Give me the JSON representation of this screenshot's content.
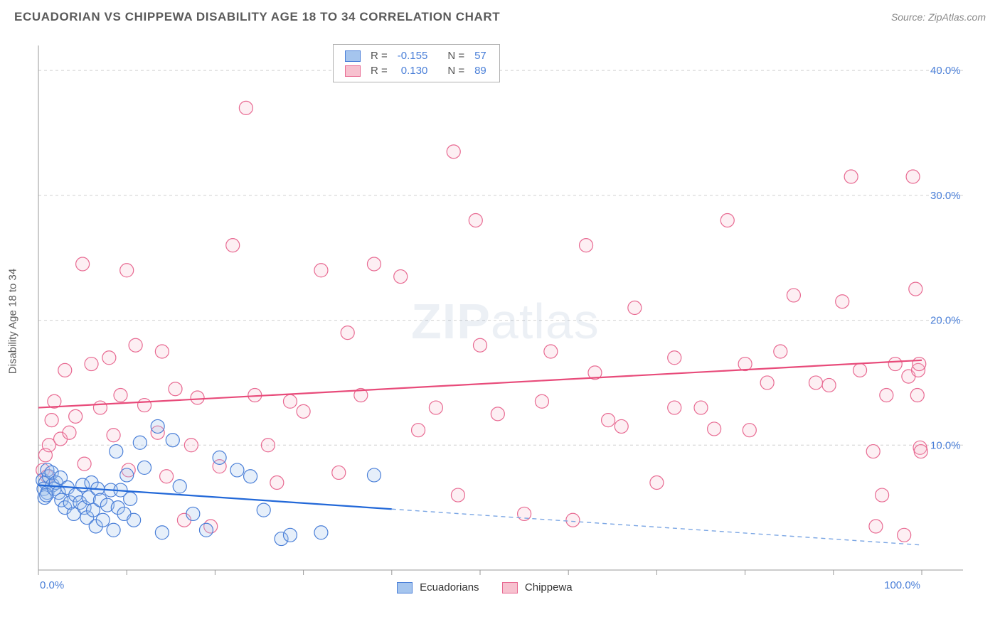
{
  "header": {
    "title": "ECUADORIAN VS CHIPPEWA DISABILITY AGE 18 TO 34 CORRELATION CHART",
    "source_label": "Source: ",
    "source_name": "ZipAtlas.com"
  },
  "ylabel": "Disability Age 18 to 34",
  "watermark": {
    "zip": "ZIP",
    "atlas": "atlas"
  },
  "stats_legend": {
    "r_symbol": "R =",
    "n_symbol": "N =",
    "rows": [
      {
        "r": "-0.155",
        "n": "57",
        "swatch_fill": "#a5c5ee",
        "swatch_stroke": "#4a7fd8"
      },
      {
        "r": "0.130",
        "n": "89",
        "swatch_fill": "#f7c1cf",
        "swatch_stroke": "#e86a92"
      }
    ]
  },
  "bottom_legend": {
    "items": [
      {
        "label": "Ecuadorians",
        "fill": "#a5c5ee",
        "stroke": "#4a7fd8"
      },
      {
        "label": "Chippewa",
        "fill": "#f7c1cf",
        "stroke": "#e86a92"
      }
    ]
  },
  "chart": {
    "type": "scatter",
    "xlim": [
      0,
      100
    ],
    "ylim": [
      0,
      42
    ],
    "x_ticks": [
      0,
      10,
      20,
      30,
      40,
      50,
      60,
      70,
      80,
      90,
      100
    ],
    "x_labeled_ticks": [
      {
        "v": 0,
        "label": "0.0%",
        "anchor": "start"
      },
      {
        "v": 100,
        "label": "100.0%",
        "anchor": "end"
      }
    ],
    "y_gridlines": [
      10,
      20,
      30,
      40
    ],
    "y_labels": [
      {
        "v": 10,
        "label": "10.0%"
      },
      {
        "v": 20,
        "label": "20.0%"
      },
      {
        "v": 30,
        "label": "30.0%"
      },
      {
        "v": 40,
        "label": "40.0%"
      }
    ],
    "marker_radius": 9.5,
    "background_color": "#ffffff",
    "grid_color": "#d0d0d0",
    "series": {
      "ecuadorians": {
        "fill": "#a5c5ee",
        "stroke": "#4a7fd8",
        "trend": {
          "y_at_x0": 6.8,
          "y_at_x100": 2.0,
          "solid_until_x": 40
        },
        "points": [
          [
            0.5,
            7.2
          ],
          [
            0.8,
            7.0
          ],
          [
            0.6,
            6.5
          ],
          [
            1.0,
            6.2
          ],
          [
            1.2,
            7.5
          ],
          [
            1.0,
            8.0
          ],
          [
            1.6,
            6.8
          ],
          [
            1.5,
            7.8
          ],
          [
            0.7,
            5.8
          ],
          [
            0.9,
            6.0
          ],
          [
            1.8,
            6.5
          ],
          [
            2.0,
            7.0
          ],
          [
            2.3,
            6.2
          ],
          [
            2.6,
            5.6
          ],
          [
            2.5,
            7.4
          ],
          [
            3.0,
            5.0
          ],
          [
            3.3,
            6.6
          ],
          [
            3.6,
            5.4
          ],
          [
            4.0,
            4.5
          ],
          [
            4.2,
            6.0
          ],
          [
            4.7,
            5.4
          ],
          [
            5.0,
            6.8
          ],
          [
            5.2,
            5.0
          ],
          [
            5.5,
            4.2
          ],
          [
            5.7,
            5.8
          ],
          [
            6.0,
            7.0
          ],
          [
            6.2,
            4.8
          ],
          [
            6.5,
            3.5
          ],
          [
            6.7,
            6.5
          ],
          [
            7.0,
            5.6
          ],
          [
            7.3,
            4.0
          ],
          [
            7.8,
            5.2
          ],
          [
            8.2,
            6.4
          ],
          [
            8.5,
            3.2
          ],
          [
            8.8,
            9.5
          ],
          [
            9.0,
            5.0
          ],
          [
            9.3,
            6.4
          ],
          [
            9.7,
            4.5
          ],
          [
            10.0,
            7.6
          ],
          [
            10.4,
            5.7
          ],
          [
            10.8,
            4.0
          ],
          [
            11.5,
            10.2
          ],
          [
            12.0,
            8.2
          ],
          [
            13.5,
            11.5
          ],
          [
            14.0,
            3.0
          ],
          [
            15.2,
            10.4
          ],
          [
            16.0,
            6.7
          ],
          [
            17.5,
            4.5
          ],
          [
            19.0,
            3.2
          ],
          [
            20.5,
            9.0
          ],
          [
            22.5,
            8.0
          ],
          [
            24.0,
            7.5
          ],
          [
            25.5,
            4.8
          ],
          [
            27.5,
            2.5
          ],
          [
            28.5,
            2.8
          ],
          [
            32.0,
            3.0
          ],
          [
            38.0,
            7.6
          ]
        ]
      },
      "chippewa": {
        "fill": "#f7c1cf",
        "stroke": "#e86a92",
        "trend": {
          "y_at_x0": 13.0,
          "y_at_x100": 16.8,
          "solid_until_x": 100
        },
        "points": [
          [
            0.5,
            8.0
          ],
          [
            0.8,
            9.2
          ],
          [
            1.0,
            7.5
          ],
          [
            1.2,
            10.0
          ],
          [
            1.5,
            12.0
          ],
          [
            1.8,
            13.5
          ],
          [
            2.5,
            10.5
          ],
          [
            3.0,
            16.0
          ],
          [
            3.5,
            11.0
          ],
          [
            4.2,
            12.3
          ],
          [
            5.0,
            24.5
          ],
          [
            5.2,
            8.5
          ],
          [
            6.0,
            16.5
          ],
          [
            7.0,
            13.0
          ],
          [
            8.0,
            17.0
          ],
          [
            8.5,
            10.8
          ],
          [
            9.3,
            14.0
          ],
          [
            10.0,
            24.0
          ],
          [
            10.2,
            8.0
          ],
          [
            11.0,
            18.0
          ],
          [
            12.0,
            13.2
          ],
          [
            13.5,
            11.0
          ],
          [
            14.0,
            17.5
          ],
          [
            14.5,
            7.5
          ],
          [
            15.5,
            14.5
          ],
          [
            16.5,
            4.0
          ],
          [
            17.3,
            10.0
          ],
          [
            18.0,
            13.8
          ],
          [
            19.5,
            3.5
          ],
          [
            20.5,
            8.3
          ],
          [
            22.0,
            26.0
          ],
          [
            23.5,
            37.0
          ],
          [
            24.5,
            14.0
          ],
          [
            26.0,
            10.0
          ],
          [
            27.0,
            7.0
          ],
          [
            28.5,
            13.5
          ],
          [
            30.0,
            12.7
          ],
          [
            32.0,
            24.0
          ],
          [
            34.0,
            7.8
          ],
          [
            35.0,
            19.0
          ],
          [
            36.5,
            14.0
          ],
          [
            38.0,
            24.5
          ],
          [
            41.0,
            23.5
          ],
          [
            43.0,
            11.2
          ],
          [
            45.0,
            13.0
          ],
          [
            47.0,
            33.5
          ],
          [
            47.5,
            6.0
          ],
          [
            49.5,
            28.0
          ],
          [
            50.0,
            18.0
          ],
          [
            52.0,
            12.5
          ],
          [
            55.0,
            4.5
          ],
          [
            57.0,
            13.5
          ],
          [
            58.0,
            17.5
          ],
          [
            60.5,
            4.0
          ],
          [
            62.0,
            26.0
          ],
          [
            63.0,
            15.8
          ],
          [
            64.5,
            12.0
          ],
          [
            66.0,
            11.5
          ],
          [
            67.5,
            21.0
          ],
          [
            70.0,
            7.0
          ],
          [
            72.0,
            17.0
          ],
          [
            75.0,
            13.0
          ],
          [
            76.5,
            11.3
          ],
          [
            78.0,
            28.0
          ],
          [
            80.0,
            16.5
          ],
          [
            80.5,
            11.2
          ],
          [
            82.5,
            15.0
          ],
          [
            84.0,
            17.5
          ],
          [
            85.5,
            22.0
          ],
          [
            88.0,
            15.0
          ],
          [
            89.5,
            14.8
          ],
          [
            91.0,
            21.5
          ],
          [
            92.0,
            31.5
          ],
          [
            93.0,
            16.0
          ],
          [
            94.5,
            9.5
          ],
          [
            95.5,
            6.0
          ],
          [
            96.0,
            14.0
          ],
          [
            97.0,
            16.5
          ],
          [
            98.0,
            2.8
          ],
          [
            98.5,
            15.5
          ],
          [
            99.0,
            31.5
          ],
          [
            99.3,
            22.5
          ],
          [
            99.5,
            14.0
          ],
          [
            99.6,
            16.0
          ],
          [
            99.7,
            16.5
          ],
          [
            99.8,
            9.8
          ],
          [
            99.9,
            9.5
          ],
          [
            94.8,
            3.5
          ],
          [
            72.0,
            13.0
          ]
        ]
      }
    }
  }
}
